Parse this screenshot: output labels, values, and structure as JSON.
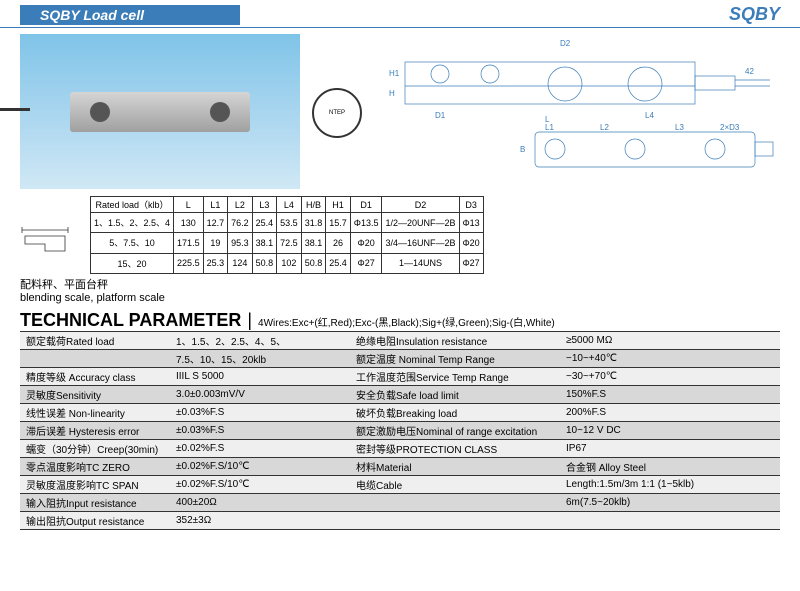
{
  "header": {
    "title": "SQBY  Load cell",
    "brand": "SQBY"
  },
  "ntep_label": "NTEP",
  "dim_table": {
    "headers": [
      "Rated load（klb）",
      "L",
      "L1",
      "L2",
      "L3",
      "L4",
      "H/B",
      "H1",
      "D1",
      "D2",
      "D3"
    ],
    "rows": [
      [
        "1、1.5、2、2.5、4",
        "130",
        "12.7",
        "76.2",
        "25.4",
        "53.5",
        "31.8",
        "15.7",
        "Φ13.5",
        "1/2—20UNF—2B",
        "Φ13"
      ],
      [
        "5、7.5、10",
        "171.5",
        "19",
        "95.3",
        "38.1",
        "72.5",
        "38.1",
        "26",
        "Φ20",
        "3/4—16UNF—2B",
        "Φ20"
      ],
      [
        "15、20",
        "225.5",
        "25.3",
        "124",
        "50.8",
        "102",
        "50.8",
        "25.4",
        "Φ27",
        "1—14UNS",
        "Φ27"
      ]
    ]
  },
  "dwg_labels": {
    "D2": "D2",
    "H1": "H1",
    "H": "H",
    "D1": "D1",
    "L": "L",
    "L4": "L4",
    "L1": "L1",
    "L2": "L2",
    "L3": "L3",
    "B": "B",
    "D3": "2×D3",
    "cable_len": "42"
  },
  "usage": {
    "cn": "配料秤、平面台秤",
    "en": "blending scale, platform scale"
  },
  "tech": {
    "title": "TECHNICAL PARAMETER",
    "subtitle": "4Wires:Exc+(红,Red);Exc-(黑,Black);Sig+(绿,Green);Sig-(白,White)"
  },
  "params": [
    {
      "l1": "额定载荷Rated load",
      "v1": "1、1.5、2、2.5、4、5、",
      "l2": "绝缘电阻Insulation resistance",
      "v2": "≥5000 MΩ"
    },
    {
      "l1": "",
      "v1": "7.5、10、15、20klb",
      "l2": "额定温度 Nominal Temp Range",
      "v2": "−10~+40℃"
    },
    {
      "l1": "精度等级 Accuracy class",
      "v1": "IIIL S 5000",
      "l2": "工作温度范围Service Temp Range",
      "v2": "−30~+70℃"
    },
    {
      "l1": "灵敏度Sensitivity",
      "v1": "3.0±0.003mV/V",
      "l2": "安全负载Safe load limit",
      "v2": "150%F.S"
    },
    {
      "l1": "线性误差 Non-linearity",
      "v1": "±0.03%F.S",
      "l2": "破坏负载Breaking load",
      "v2": "200%F.S"
    },
    {
      "l1": "滞后误差 Hysteresis error",
      "v1": "±0.03%F.S",
      "l2": "额定激励电压Nominal of range excitation",
      "v2": "10~12 V DC"
    },
    {
      "l1": "蠕变（30分钟）Creep(30min)",
      "v1": "±0.02%F.S",
      "l2": "密封等级PROTECTION CLASS",
      "v2": "IP67"
    },
    {
      "l1": "零点温度影响TC ZERO",
      "v1": "±0.02%F.S/10℃",
      "l2": "材料Material",
      "v2": "合金钢 Alloy Steel"
    },
    {
      "l1": "灵敏度温度影响TC SPAN",
      "v1": "±0.02%F.S/10℃",
      "l2": "电缆Cable",
      "v2": "Length:1.5m/3m 1:1 (1~5klb)"
    },
    {
      "l1": "输入阻抗Input resistance",
      "v1": "400±20Ω",
      "l2": "",
      "v2": "6m(7.5~20klb)"
    },
    {
      "l1": "输出阻抗Output resistance",
      "v1": "352±3Ω",
      "l2": "",
      "v2": ""
    }
  ],
  "colors": {
    "accent": "#3a7db8",
    "grid": "#333333",
    "row_even": "#d8d8d8",
    "row_odd": "#efefef"
  }
}
